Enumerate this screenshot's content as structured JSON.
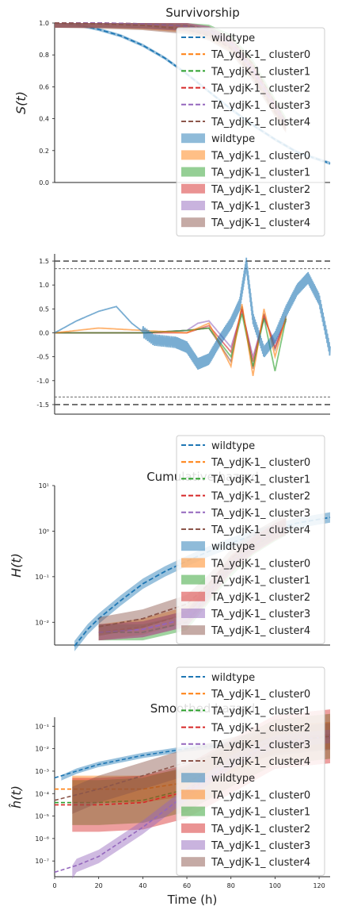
{
  "colors": {
    "wildtype": "#1f77b4",
    "cluster0": "#ff7f0e",
    "cluster1": "#2ca02c",
    "cluster2": "#d62728",
    "cluster3": "#9467bd",
    "cluster4": "#8c564b",
    "reference_lines": "#555555"
  },
  "chart_data": [
    {
      "id": "survivorship",
      "type": "line",
      "title": "Survivorship",
      "ylabel": "S(t)",
      "xlabel": "",
      "xlim": [
        0,
        125
      ],
      "ylim": [
        0,
        1.0
      ],
      "yticks": [
        0.0,
        0.2,
        0.4,
        0.6,
        0.8,
        1.0
      ],
      "grid": false,
      "legend": {
        "placement": "top-right",
        "entries": [
          "wildtype",
          "TA_ydjK-1_ cluster0",
          "TA_ydjK-1_ cluster1",
          "TA_ydjK-1_ cluster2",
          "TA_ydjK-1_ cluster3",
          "TA_ydjK-1_ cluster4",
          "wildtype",
          "TA_ydjK-1_ cluster0",
          "TA_ydjK-1_ cluster1",
          "TA_ydjK-1_ cluster2",
          "TA_ydjK-1_ cluster3",
          "TA_ydjK-1_ cluster4"
        ]
      },
      "series": [
        {
          "name": "wildtype",
          "x": [
            0,
            10,
            20,
            30,
            40,
            50,
            60,
            70,
            80,
            90,
            100,
            110,
            125
          ],
          "y": [
            1.0,
            0.99,
            0.96,
            0.92,
            0.86,
            0.78,
            0.68,
            0.57,
            0.46,
            0.36,
            0.27,
            0.19,
            0.12
          ],
          "band": 0.01
        },
        {
          "name": "TA_ydjK-1_ cluster0",
          "x": [
            0,
            20,
            40,
            60,
            70,
            80,
            90,
            100,
            105
          ],
          "y": [
            1.0,
            1.0,
            0.99,
            0.97,
            0.93,
            0.85,
            0.68,
            0.45,
            0.35
          ],
          "band": 0.03
        },
        {
          "name": "TA_ydjK-1_ cluster1",
          "x": [
            0,
            20,
            40,
            60,
            70,
            80,
            90,
            100,
            105
          ],
          "y": [
            1.0,
            1.0,
            0.995,
            0.985,
            0.96,
            0.9,
            0.74,
            0.5,
            0.38
          ],
          "band": 0.03
        },
        {
          "name": "TA_ydjK-1_ cluster2",
          "x": [
            0,
            20,
            40,
            60,
            70,
            80,
            90,
            100,
            105
          ],
          "y": [
            1.0,
            1.0,
            0.995,
            0.98,
            0.95,
            0.88,
            0.72,
            0.48,
            0.36
          ],
          "band": 0.03
        },
        {
          "name": "TA_ydjK-1_ cluster3",
          "x": [
            0,
            20,
            40,
            60,
            70,
            80,
            90,
            100,
            105
          ],
          "y": [
            1.0,
            1.0,
            0.995,
            0.98,
            0.95,
            0.87,
            0.7,
            0.47,
            0.36
          ],
          "band": 0.03
        },
        {
          "name": "TA_ydjK-1_ cluster4",
          "x": [
            0,
            20,
            40,
            60,
            70,
            80,
            90,
            100,
            105
          ],
          "y": [
            1.0,
            0.995,
            0.985,
            0.96,
            0.92,
            0.84,
            0.66,
            0.44,
            0.34
          ],
          "band": 0.03
        }
      ]
    },
    {
      "id": "difference",
      "type": "line",
      "title": "",
      "ylabel": "",
      "xlabel": "",
      "xlim": [
        0,
        125
      ],
      "ylim": [
        -1.7,
        1.65
      ],
      "yticks": [
        -1.5,
        -1.0,
        -0.5,
        0.0,
        0.5,
        1.0,
        1.5
      ],
      "grid": false,
      "reference_lines": [
        1.5,
        1.34,
        -1.34,
        -1.5
      ],
      "series": [
        {
          "name": "wildtype",
          "x": [
            0,
            10,
            20,
            28,
            35,
            45,
            55,
            60,
            65,
            70,
            75,
            80,
            84,
            87,
            90,
            95,
            100,
            105,
            110,
            115,
            120,
            125
          ],
          "y": [
            0.0,
            0.25,
            0.45,
            0.55,
            0.2,
            -0.15,
            -0.2,
            -0.3,
            -0.65,
            -0.55,
            -0.15,
            0.2,
            0.6,
            1.45,
            0.3,
            -0.4,
            -0.1,
            0.45,
            0.9,
            1.15,
            0.7,
            -0.4
          ]
        },
        {
          "name": "TA_ydjK-1_ cluster0",
          "x": [
            0,
            20,
            40,
            60,
            70,
            80,
            85,
            90,
            95,
            100,
            105
          ],
          "y": [
            0.0,
            0.1,
            0.05,
            0.0,
            0.2,
            -0.7,
            0.6,
            -0.9,
            0.5,
            -0.5,
            0.35
          ]
        },
        {
          "name": "TA_ydjK-1_ cluster1",
          "x": [
            0,
            20,
            40,
            60,
            70,
            80,
            85,
            90,
            95,
            100,
            105
          ],
          "y": [
            0.0,
            0.0,
            0.0,
            0.05,
            0.1,
            -0.5,
            0.4,
            -0.7,
            0.3,
            -0.8,
            0.3
          ]
        },
        {
          "name": "TA_ydjK-1_ cluster2",
          "x": [
            0,
            20,
            40,
            60,
            70,
            80,
            85,
            90,
            95,
            100,
            105
          ],
          "y": [
            0.0,
            0.0,
            0.0,
            0.0,
            0.15,
            -0.4,
            0.5,
            -0.6,
            0.35,
            -0.3,
            0.3
          ]
        },
        {
          "name": "TA_ydjK-1_ cluster3",
          "x": [
            0,
            20,
            40,
            60,
            65,
            70,
            80,
            85,
            90,
            95,
            100,
            105
          ],
          "y": [
            0.0,
            0.0,
            0.0,
            0.05,
            0.2,
            0.25,
            -0.3,
            0.45,
            -0.5,
            0.3,
            -0.2,
            0.25
          ]
        },
        {
          "name": "TA_ydjK-1_ cluster4",
          "x": [
            0,
            20,
            40,
            60,
            70,
            80,
            85,
            90,
            95,
            100,
            105
          ],
          "y": [
            0.0,
            0.0,
            0.0,
            0.05,
            0.1,
            -0.6,
            0.55,
            -0.75,
            0.4,
            -0.35,
            0.3
          ]
        }
      ]
    },
    {
      "id": "cumulative-hazard",
      "type": "line",
      "title": "Cumulative hazard",
      "ylabel": "H(t)",
      "xlabel": "",
      "xlim": [
        0,
        125
      ],
      "ylim_log10": [
        -2.5,
        1.0
      ],
      "yticks_log10": [
        -2,
        -1,
        0,
        1
      ],
      "log_scale": "y",
      "grid": false,
      "legend": {
        "placement": "top-right",
        "entries": [
          "wildtype",
          "TA_ydjK-1_ cluster0",
          "TA_ydjK-1_ cluster1",
          "TA_ydjK-1_ cluster2",
          "TA_ydjK-1_ cluster3",
          "TA_ydjK-1_ cluster4",
          "wildtype",
          "TA_ydjK-1_ cluster0",
          "TA_ydjK-1_ cluster1",
          "TA_ydjK-1_ cluster2",
          "TA_ydjK-1_ cluster3",
          "TA_ydjK-1_ cluster4"
        ]
      },
      "series": [
        {
          "name": "wildtype",
          "x": [
            9,
            15,
            20,
            30,
            40,
            50,
            60,
            70,
            80,
            90,
            100,
            110,
            125
          ],
          "y": [
            0.003,
            0.007,
            0.012,
            0.03,
            0.07,
            0.13,
            0.22,
            0.36,
            0.55,
            0.8,
            1.1,
            1.5,
            2.0
          ],
          "band_factor": 1.3
        },
        {
          "name": "TA_ydjK-1_ cluster0",
          "x": [
            20,
            40,
            60,
            70,
            80,
            90,
            100,
            105
          ],
          "y": [
            0.006,
            0.008,
            0.015,
            0.05,
            0.2,
            0.5,
            1.0,
            1.3
          ],
          "band_factor": 1.5
        },
        {
          "name": "TA_ydjK-1_ cluster1",
          "x": [
            20,
            40,
            60,
            70,
            80,
            90,
            100,
            105
          ],
          "y": [
            0.006,
            0.006,
            0.01,
            0.04,
            0.15,
            0.45,
            0.9,
            1.2
          ],
          "band_factor": 1.5
        },
        {
          "name": "TA_ydjK-1_ cluster2",
          "x": [
            20,
            40,
            60,
            70,
            80,
            90,
            100,
            105
          ],
          "y": [
            0.006,
            0.007,
            0.012,
            0.045,
            0.18,
            0.48,
            0.95,
            1.25
          ],
          "band_factor": 1.5
        },
        {
          "name": "TA_ydjK-1_ cluster3",
          "x": [
            20,
            40,
            60,
            70,
            80,
            90,
            100,
            105
          ],
          "y": [
            0.006,
            0.007,
            0.012,
            0.05,
            0.19,
            0.5,
            1.0,
            1.3
          ],
          "band_factor": 1.5
        },
        {
          "name": "TA_ydjK-1_ cluster4",
          "x": [
            20,
            40,
            60,
            70,
            80,
            90,
            100,
            105
          ],
          "y": [
            0.008,
            0.012,
            0.025,
            0.07,
            0.25,
            0.6,
            1.1,
            1.4
          ],
          "band_factor": 1.6
        }
      ]
    },
    {
      "id": "smoothed-hazard",
      "type": "line",
      "title": "Smoothed hazard",
      "ylabel": "ĥ(t)",
      "xlabel": "Time (h)",
      "xlim": [
        0,
        125
      ],
      "xticks": [
        0,
        20,
        40,
        60,
        80,
        100,
        120
      ],
      "ylim_log10": [
        -7.7,
        -0.6
      ],
      "yticks_log10": [
        -7,
        -6,
        -5,
        -4,
        -3,
        -2,
        -1
      ],
      "log_scale": "y",
      "grid": false,
      "legend": {
        "placement": "top-right",
        "entries": [
          "wildtype",
          "TA_ydjK-1_ cluster0",
          "TA_ydjK-1_ cluster1",
          "TA_ydjK-1_ cluster2",
          "TA_ydjK-1_ cluster3",
          "TA_ydjK-1_ cluster4",
          "wildtype",
          "TA_ydjK-1_ cluster0",
          "TA_ydjK-1_ cluster1",
          "TA_ydjK-1_ cluster2",
          "TA_ydjK-1_ cluster3",
          "TA_ydjK-1_ cluster4"
        ]
      },
      "series": [
        {
          "name": "wildtype",
          "x": [
            0,
            10,
            20,
            40,
            60,
            80,
            100,
            125
          ],
          "y_log10": [
            -3.3,
            -3.0,
            -2.7,
            -2.3,
            -2.0,
            -1.8,
            -1.6,
            -1.45
          ],
          "band_log10": 0.12
        },
        {
          "name": "TA_ydjK-1_ cluster0",
          "x": [
            0,
            20,
            40,
            60,
            80,
            100,
            125
          ],
          "y_log10": [
            -3.8,
            -3.8,
            -3.8,
            -3.5,
            -2.5,
            -1.6,
            -1.4
          ],
          "band_log10": 0.6
        },
        {
          "name": "TA_ydjK-1_ cluster1",
          "x": [
            0,
            20,
            40,
            60,
            80,
            100,
            125
          ],
          "y_log10": [
            -4.4,
            -4.4,
            -4.3,
            -3.8,
            -2.7,
            -1.7,
            -1.45
          ],
          "band_log10": 1.0
        },
        {
          "name": "TA_ydjK-1_ cluster2",
          "x": [
            0,
            20,
            40,
            60,
            80,
            100,
            125
          ],
          "y_log10": [
            -4.5,
            -4.5,
            -4.4,
            -3.9,
            -2.8,
            -1.7,
            -1.45
          ],
          "band_log10": 1.2
        },
        {
          "name": "TA_ydjK-1_ cluster3",
          "x": [
            0,
            10,
            20,
            40,
            60,
            80,
            100,
            125
          ],
          "y_log10": [
            -7.5,
            -7.2,
            -6.8,
            -5.5,
            -4.0,
            -2.6,
            -1.7,
            -1.45
          ],
          "band_log10": 0.3
        },
        {
          "name": "TA_ydjK-1_ cluster4",
          "x": [
            0,
            20,
            40,
            60,
            80,
            100,
            125
          ],
          "y_log10": [
            -4.3,
            -3.8,
            -3.2,
            -2.6,
            -2.1,
            -1.7,
            -1.45
          ],
          "band_log10": 0.6
        }
      ]
    }
  ]
}
